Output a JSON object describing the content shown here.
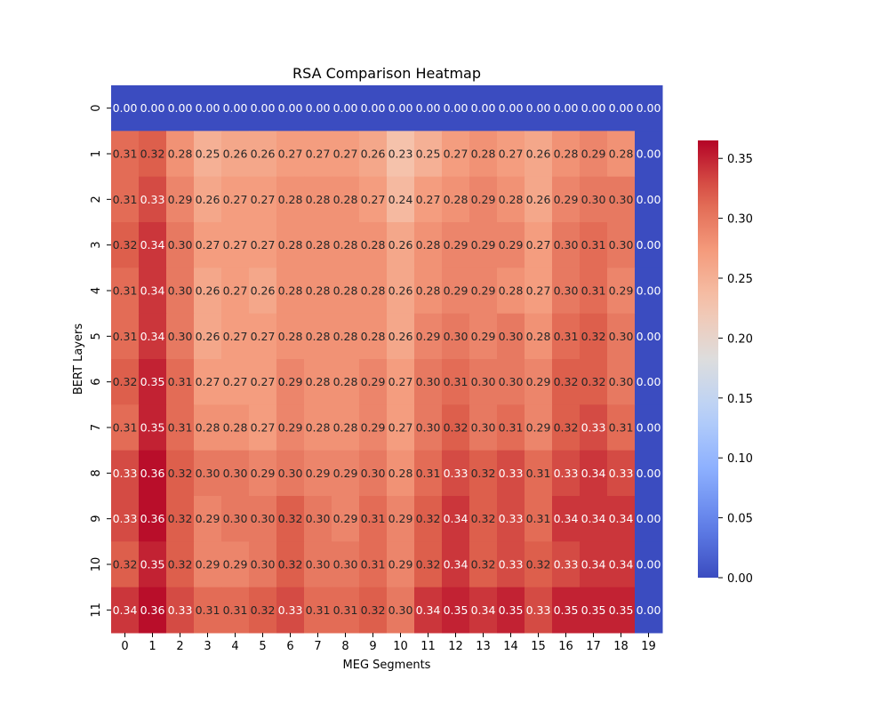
{
  "chart_data": {
    "type": "heatmap",
    "title": "RSA Comparison Heatmap",
    "xlabel": "MEG Segments",
    "ylabel": "BERT Layers",
    "x_categories": [
      "0",
      "1",
      "2",
      "3",
      "4",
      "5",
      "6",
      "7",
      "8",
      "9",
      "10",
      "11",
      "12",
      "13",
      "14",
      "15",
      "16",
      "17",
      "18",
      "19"
    ],
    "y_categories": [
      "0",
      "1",
      "2",
      "3",
      "4",
      "5",
      "6",
      "7",
      "8",
      "9",
      "10",
      "11"
    ],
    "values": [
      [
        0.0,
        0.0,
        0.0,
        0.0,
        0.0,
        0.0,
        0.0,
        0.0,
        0.0,
        0.0,
        0.0,
        0.0,
        0.0,
        0.0,
        0.0,
        0.0,
        0.0,
        0.0,
        0.0,
        0.0
      ],
      [
        0.31,
        0.32,
        0.28,
        0.25,
        0.26,
        0.26,
        0.27,
        0.27,
        0.27,
        0.26,
        0.23,
        0.25,
        0.27,
        0.28,
        0.27,
        0.26,
        0.28,
        0.29,
        0.28,
        0.0
      ],
      [
        0.31,
        0.33,
        0.29,
        0.26,
        0.27,
        0.27,
        0.28,
        0.28,
        0.28,
        0.27,
        0.24,
        0.27,
        0.28,
        0.29,
        0.28,
        0.26,
        0.29,
        0.3,
        0.3,
        0.0
      ],
      [
        0.32,
        0.34,
        0.3,
        0.27,
        0.27,
        0.27,
        0.28,
        0.28,
        0.28,
        0.28,
        0.26,
        0.28,
        0.29,
        0.29,
        0.29,
        0.27,
        0.3,
        0.31,
        0.3,
        0.0
      ],
      [
        0.31,
        0.34,
        0.3,
        0.26,
        0.27,
        0.26,
        0.28,
        0.28,
        0.28,
        0.28,
        0.26,
        0.28,
        0.29,
        0.29,
        0.28,
        0.27,
        0.3,
        0.31,
        0.29,
        0.0
      ],
      [
        0.31,
        0.34,
        0.3,
        0.26,
        0.27,
        0.27,
        0.28,
        0.28,
        0.28,
        0.28,
        0.26,
        0.29,
        0.3,
        0.29,
        0.3,
        0.28,
        0.31,
        0.32,
        0.3,
        0.0
      ],
      [
        0.32,
        0.35,
        0.31,
        0.27,
        0.27,
        0.27,
        0.29,
        0.28,
        0.28,
        0.29,
        0.27,
        0.3,
        0.31,
        0.3,
        0.3,
        0.29,
        0.32,
        0.32,
        0.3,
        0.0
      ],
      [
        0.31,
        0.35,
        0.31,
        0.28,
        0.28,
        0.27,
        0.29,
        0.28,
        0.28,
        0.29,
        0.27,
        0.3,
        0.32,
        0.3,
        0.31,
        0.29,
        0.32,
        0.33,
        0.31,
        0.0
      ],
      [
        0.33,
        0.36,
        0.32,
        0.3,
        0.3,
        0.29,
        0.3,
        0.29,
        0.29,
        0.3,
        0.28,
        0.31,
        0.33,
        0.32,
        0.33,
        0.31,
        0.33,
        0.34,
        0.33,
        0.0
      ],
      [
        0.33,
        0.36,
        0.32,
        0.29,
        0.3,
        0.3,
        0.32,
        0.3,
        0.29,
        0.31,
        0.29,
        0.32,
        0.34,
        0.32,
        0.33,
        0.31,
        0.34,
        0.34,
        0.34,
        0.0
      ],
      [
        0.32,
        0.35,
        0.32,
        0.29,
        0.29,
        0.3,
        0.32,
        0.3,
        0.3,
        0.31,
        0.29,
        0.32,
        0.34,
        0.32,
        0.33,
        0.32,
        0.33,
        0.34,
        0.34,
        0.0
      ],
      [
        0.34,
        0.36,
        0.33,
        0.31,
        0.31,
        0.32,
        0.33,
        0.31,
        0.31,
        0.32,
        0.3,
        0.34,
        0.35,
        0.34,
        0.35,
        0.33,
        0.35,
        0.35,
        0.35,
        0.0
      ]
    ],
    "value_format": "0.00",
    "colormap": "coolwarm",
    "vmin": 0.0,
    "vmax": 0.365,
    "colorbar_ticks": [
      "0.00",
      "0.05",
      "0.10",
      "0.15",
      "0.20",
      "0.25",
      "0.30",
      "0.35"
    ],
    "colors": {
      "low": "#3b4cc0",
      "mid": "#dddddd",
      "high": "#b40426"
    }
  }
}
